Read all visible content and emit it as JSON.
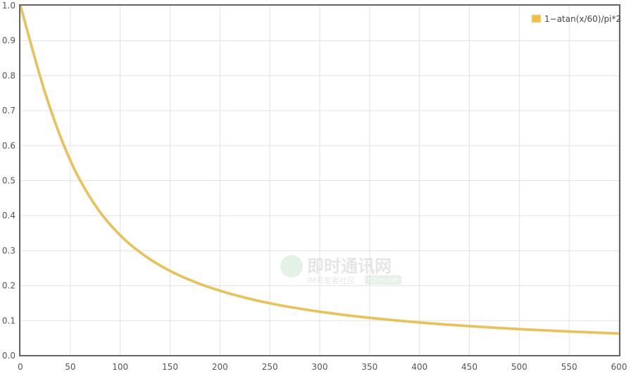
{
  "chart_data": {
    "type": "line",
    "title": "",
    "xlabel": "",
    "ylabel": "",
    "xlim": [
      0,
      600
    ],
    "ylim": [
      0,
      1.0
    ],
    "grid": true,
    "legend_position": "top-right",
    "x_ticks": [
      "0",
      "50",
      "100",
      "150",
      "200",
      "250",
      "300",
      "350",
      "400",
      "450",
      "500",
      "550",
      "600"
    ],
    "y_ticks": [
      "0.0",
      "0.1",
      "0.2",
      "0.3",
      "0.4",
      "0.5",
      "0.6",
      "0.7",
      "0.8",
      "0.9",
      "1.0"
    ],
    "series": [
      {
        "name": "1−atan(x/60)/pi*2",
        "color": "#f0c23b",
        "x": [
          0,
          25,
          50,
          75,
          100,
          125,
          150,
          175,
          200,
          225,
          250,
          275,
          300,
          325,
          350,
          375,
          400,
          425,
          450,
          475,
          500,
          525,
          550,
          575,
          600
        ],
        "y": [
          1.0,
          0.7487,
          0.5577,
          0.4295,
          0.344,
          0.2849,
          0.2422,
          0.2104,
          0.1856,
          0.1659,
          0.1498,
          0.1367,
          0.1257,
          0.1162,
          0.1081,
          0.1011,
          0.0948,
          0.0893,
          0.0844,
          0.08,
          0.076,
          0.0724,
          0.0692,
          0.0661,
          0.0635
        ]
      }
    ]
  },
  "watermark": {
    "title": "即时通讯网",
    "subtitle": "IM开发者社区",
    "site": "52im.net"
  },
  "colors": {
    "axis": "#666666",
    "grid": "#e2e2e2",
    "line": "#f0c23b"
  }
}
